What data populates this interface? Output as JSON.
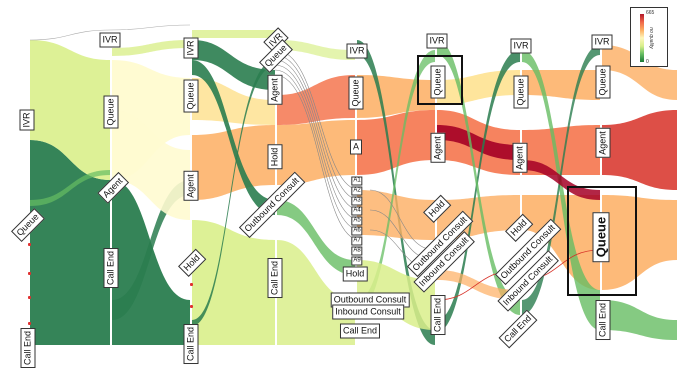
{
  "legend": {
    "max": "665",
    "min": "0",
    "title": "no quality"
  },
  "colors": {
    "dark_green": "#2a7d4f",
    "mid_green": "#66bd63",
    "light_green": "#d9ef8b",
    "pale_yellow": "#fffbd0",
    "yellow": "#fee08b",
    "light_orange": "#fdae61",
    "orange": "#f46d43",
    "red": "#d73027",
    "dark_red": "#a50026",
    "grey": "#999999"
  },
  "labels": {
    "ivr": "IVR",
    "queue": "Queue",
    "agent": "Agent",
    "call_end": "Call End",
    "hold": "Hold",
    "outbound_consult": "Outbound Consult",
    "inbound_consult": "Inbound Consult",
    "a": "A",
    "a1": "A1",
    "a2": "A2",
    "a3": "A3",
    "a4": "A4",
    "a5": "A5",
    "a6": "A6",
    "a7": "A7",
    "a8": "A8",
    "a9": "A9"
  }
}
